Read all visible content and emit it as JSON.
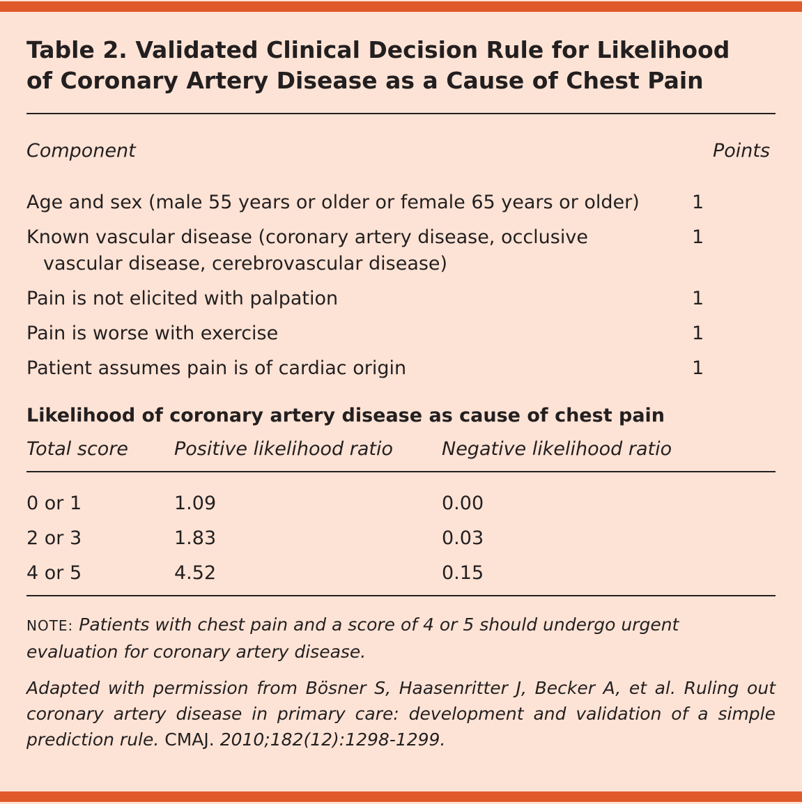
{
  "title_line1": "Table 2. Validated Clinical Decision Rule for Likelihood",
  "title_line2": "of Coronary Artery Disease as a Cause of Chest Pain",
  "components": {
    "header_component": "Component",
    "header_points": "Points",
    "rows": [
      {
        "text": "Age and sex (male 55 years or older or female 65 years or older)",
        "points": "1"
      },
      {
        "text": "Known vascular disease (coronary artery disease, occlusive",
        "text_cont": "vascular disease, cerebrovascular disease)",
        "points": "1"
      },
      {
        "text": "Pain is not elicited with palpation",
        "points": "1"
      },
      {
        "text": "Pain is worse with exercise",
        "points": "1"
      },
      {
        "text": "Patient assumes pain is of cardiac origin",
        "points": "1"
      }
    ]
  },
  "likelihood": {
    "heading": "Likelihood of coronary artery disease as cause of chest pain",
    "columns": [
      "Total score",
      "Positive likelihood ratio",
      "Negative likelihood ratio"
    ],
    "rows": [
      [
        "0 or 1",
        "1.09",
        "0.00"
      ],
      [
        "2 or 3",
        "1.83",
        "0.03"
      ],
      [
        "4 or 5",
        "4.52",
        "0.15"
      ]
    ]
  },
  "note": {
    "label": "NOTE:",
    "text": "Patients with chest pain and a score of 4 or 5 should undergo urgent evaluation for coronary artery disease."
  },
  "source": {
    "part1": "Adapted with permission from Bösner S, Haasenritter J, Becker A, et al. Ruling out coronary artery disease in primary care: development and validation of a simple prediction rule.",
    "journal": "CMAJ.",
    "part2": "2010;182(12):1298-1299."
  },
  "colors": {
    "background": "#fde3d5",
    "accent_bar": "#e0592a",
    "text": "#231f20"
  }
}
